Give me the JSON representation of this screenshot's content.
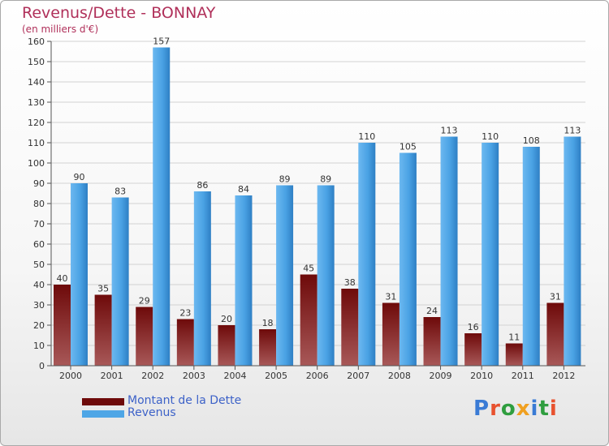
{
  "title": "Revenus/Dette - BONNAY",
  "subtitle": "(en milliers d'€)",
  "colors": {
    "title": "#b0305a",
    "debt": "#7a1010",
    "revenue": "#4ea6e6",
    "legend_text": "#3d62c8"
  },
  "logo": {
    "text": "Proxiti"
  },
  "chart_data": {
    "type": "bar",
    "categories": [
      "2000",
      "2001",
      "2002",
      "2003",
      "2004",
      "2005",
      "2006",
      "2007",
      "2008",
      "2009",
      "2010",
      "2011",
      "2012"
    ],
    "series": [
      {
        "name": "Montant de la Dette",
        "values": [
          40,
          35,
          29,
          23,
          20,
          18,
          45,
          38,
          31,
          24,
          16,
          11,
          31
        ]
      },
      {
        "name": "Revenus",
        "values": [
          90,
          83,
          157,
          86,
          84,
          89,
          89,
          110,
          105,
          113,
          110,
          108,
          113
        ]
      }
    ],
    "title": "Revenus/Dette - BONNAY",
    "ylim": [
      0,
      160
    ],
    "yticks": [
      0,
      10,
      20,
      30,
      40,
      50,
      60,
      70,
      80,
      90,
      100,
      110,
      120,
      130,
      140,
      150,
      160
    ],
    "grid": true,
    "legend": "bottom-left"
  }
}
